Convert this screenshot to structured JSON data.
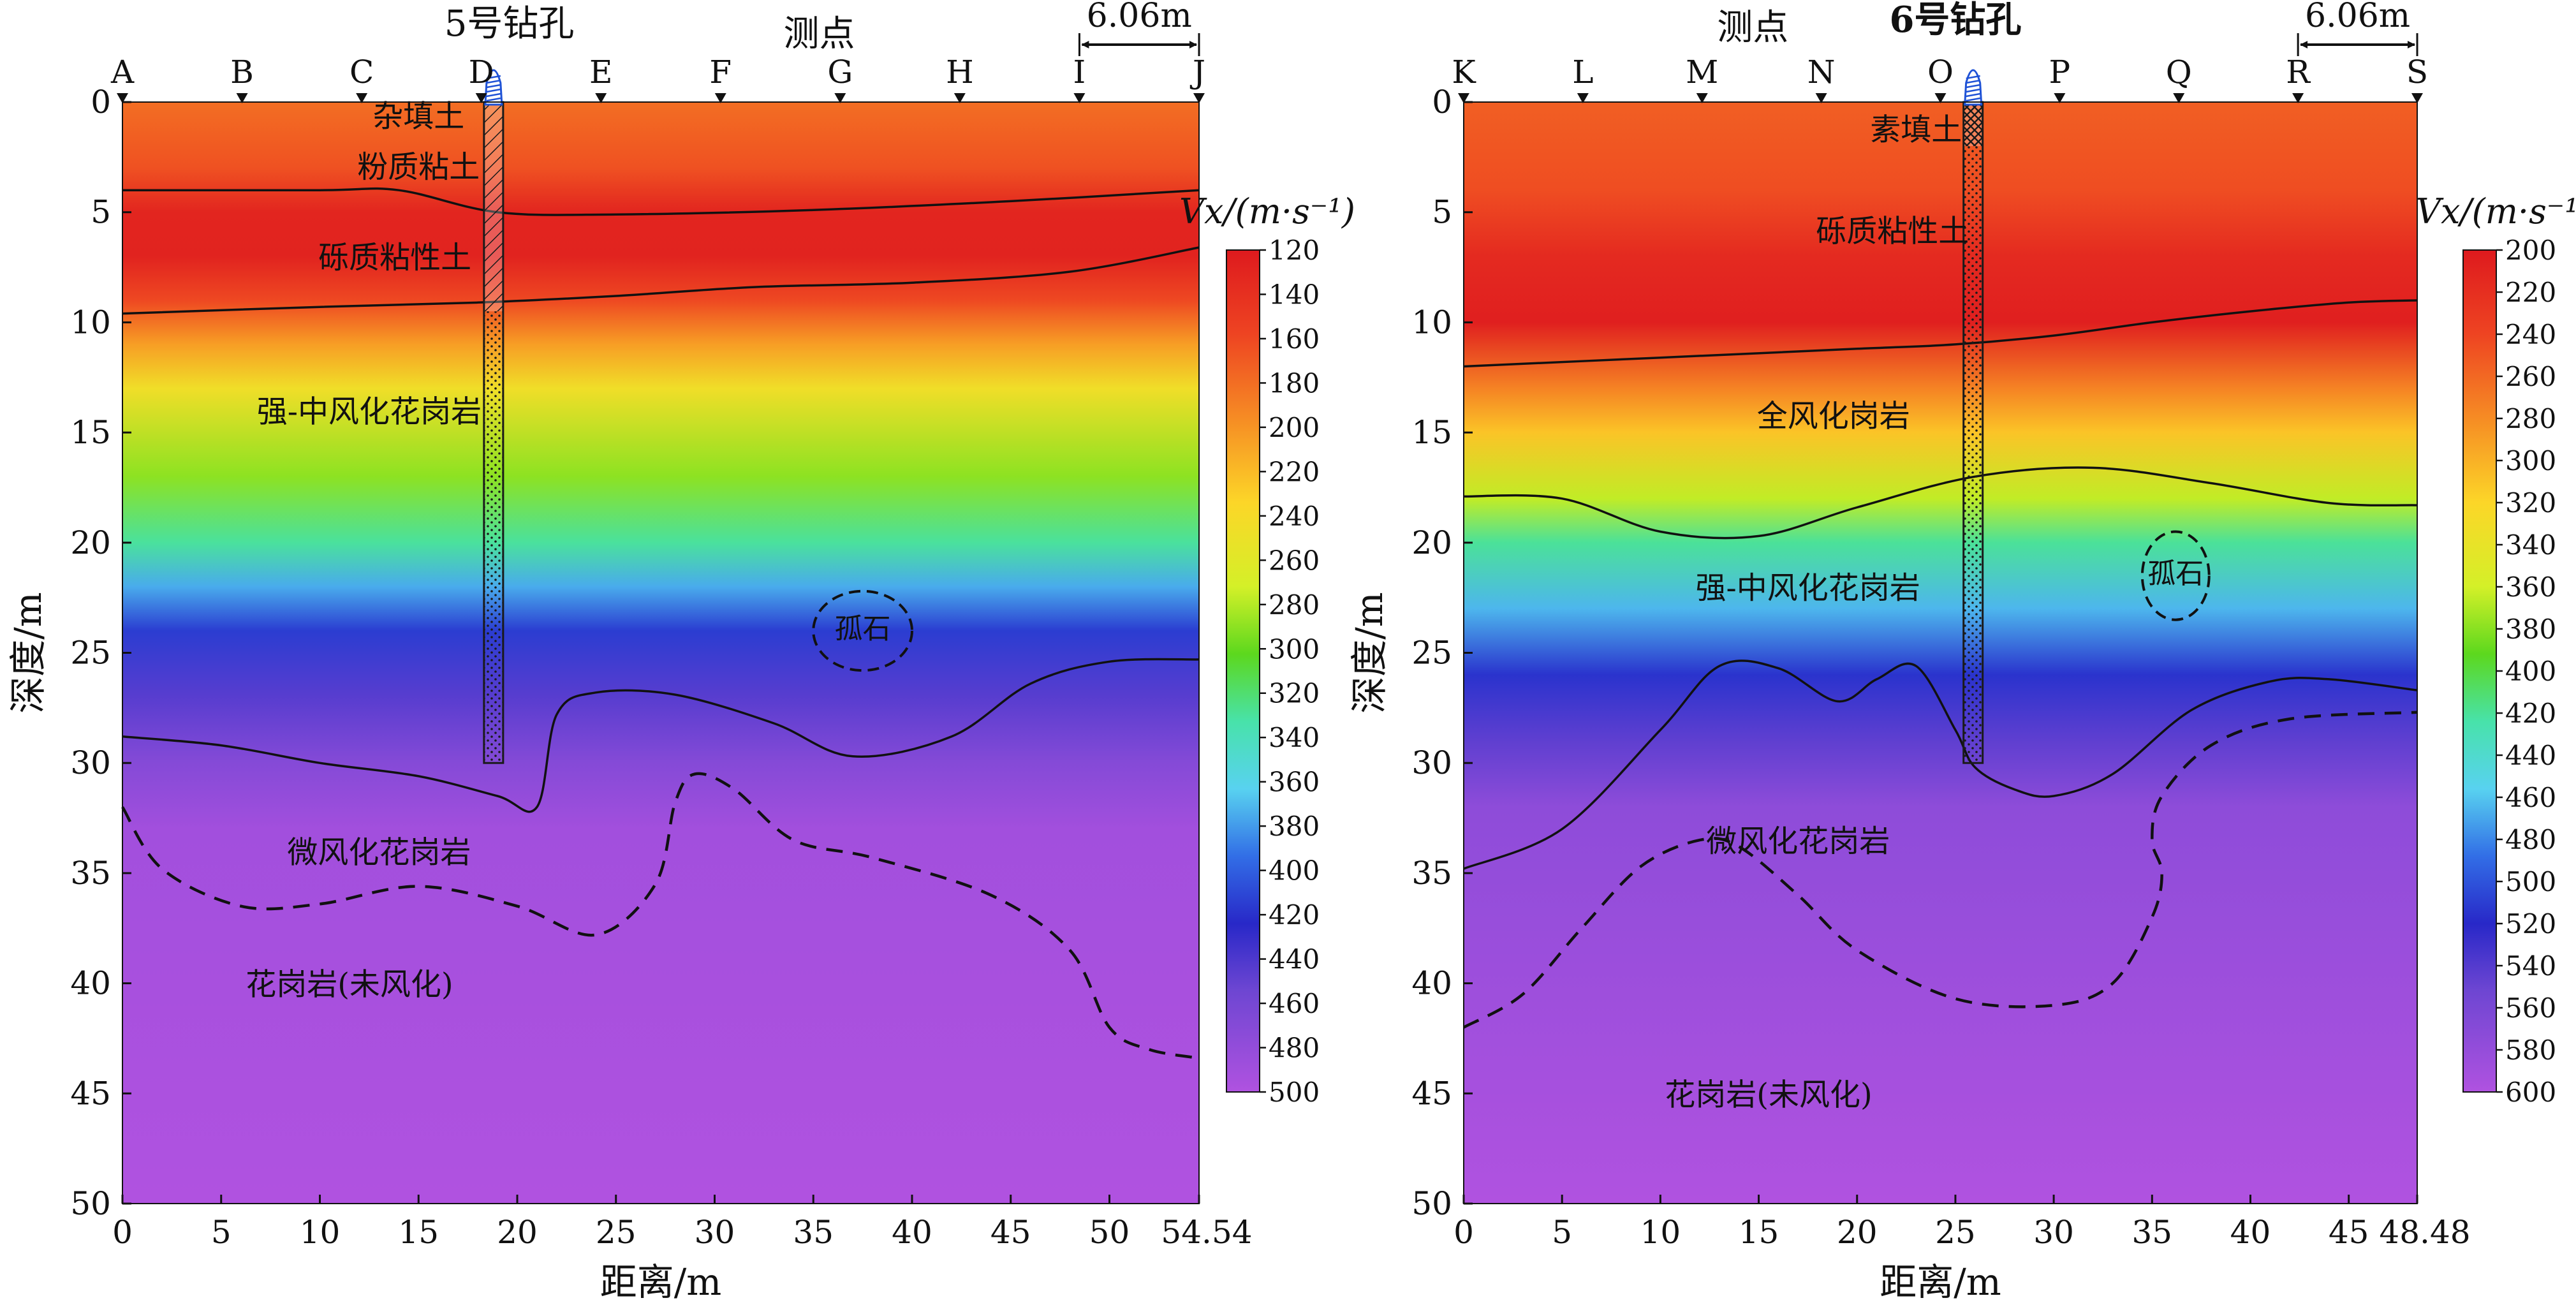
{
  "colors": {
    "fill_material": "#1a1a1a",
    "boundary": "#111111",
    "drill_icon": "#1f52d6"
  },
  "chart_data": [
    {
      "type": "heatmap",
      "id": "left",
      "top_label": "测点",
      "borehole_title": "5号钻孔",
      "spacing_label": "6.06m",
      "xlabel": "距离/m",
      "ylabel": "深度/m",
      "xlim": [
        0,
        54.54
      ],
      "ylim": [
        0,
        50
      ],
      "xticks": [
        0,
        5,
        10,
        15,
        20,
        25,
        30,
        35,
        40,
        45,
        50
      ],
      "xtick_labels": [
        "0",
        "5",
        "10",
        "15",
        "20",
        "25",
        "30",
        "35",
        "40",
        "45",
        "50"
      ],
      "x_end_label": "54.54",
      "yticks": [
        0,
        5,
        10,
        15,
        20,
        25,
        30,
        35,
        40,
        45,
        50
      ],
      "ytick_labels": [
        "0",
        "5",
        "10",
        "15",
        "20",
        "25",
        "30",
        "35",
        "40",
        "45",
        "50"
      ],
      "stations": [
        {
          "name": "A",
          "x": 0
        },
        {
          "name": "B",
          "x": 6.06
        },
        {
          "name": "C",
          "x": 12.12
        },
        {
          "name": "D",
          "x": 18.18
        },
        {
          "name": "E",
          "x": 24.24
        },
        {
          "name": "F",
          "x": 30.3
        },
        {
          "name": "G",
          "x": 36.36
        },
        {
          "name": "H",
          "x": 42.42
        },
        {
          "name": "I",
          "x": 48.48
        },
        {
          "name": "J",
          "x": 54.54
        }
      ],
      "spacing_from": 48.48,
      "spacing_to": 54.54,
      "borehole": {
        "x": 18.8,
        "depth": 30,
        "fill_segments": [
          {
            "from": 0,
            "to": 9.5,
            "pattern": "hatch"
          },
          {
            "from": 9.5,
            "to": 30,
            "pattern": "dots"
          }
        ]
      },
      "colorbar": {
        "title": "Vx/(m·s⁻¹)",
        "vmin": 120,
        "vmax": 500,
        "ticks": [
          "120",
          "140",
          "160",
          "180",
          "200",
          "220",
          "240",
          "260",
          "280",
          "300",
          "320",
          "340",
          "360",
          "380",
          "400",
          "420",
          "440",
          "460",
          "480",
          "500"
        ]
      },
      "velocity_layers": [
        {
          "depth": 0,
          "v": 180
        },
        {
          "depth": 3,
          "v": 165
        },
        {
          "depth": 5,
          "v": 130
        },
        {
          "depth": 7,
          "v": 128
        },
        {
          "depth": 9,
          "v": 160
        },
        {
          "depth": 11,
          "v": 205
        },
        {
          "depth": 13,
          "v": 245
        },
        {
          "depth": 17,
          "v": 290
        },
        {
          "depth": 20,
          "v": 330
        },
        {
          "depth": 22,
          "v": 375
        },
        {
          "depth": 24,
          "v": 415
        },
        {
          "depth": 27,
          "v": 445
        },
        {
          "depth": 30,
          "v": 470
        },
        {
          "depth": 33,
          "v": 490
        },
        {
          "depth": 50,
          "v": 500
        }
      ],
      "boundaries": [
        {
          "style": "solid",
          "x": [
            0,
            10,
            14,
            19,
            25,
            35,
            45,
            54.54
          ],
          "y": [
            4,
            4,
            4,
            5,
            5.1,
            4.9,
            4.5,
            4
          ]
        },
        {
          "style": "solid",
          "x": [
            0,
            10,
            18,
            25,
            32,
            40,
            48,
            54.54
          ],
          "y": [
            9.6,
            9.3,
            9.1,
            8.8,
            8.4,
            8.2,
            7.7,
            6.6
          ]
        },
        {
          "style": "solid",
          "x": [
            0,
            5,
            10,
            15,
            19,
            21,
            22,
            24,
            28,
            33,
            37,
            42,
            46,
            50,
            54.54
          ],
          "y": [
            28.8,
            29.2,
            30,
            30.6,
            31.5,
            32,
            27.8,
            26.8,
            26.9,
            28.2,
            29.7,
            28.8,
            26.4,
            25.4,
            25.3
          ]
        },
        {
          "style": "dashed",
          "x": [
            0,
            2,
            6,
            10,
            15,
            20,
            24,
            27,
            28,
            29,
            31,
            34,
            38,
            44,
            48,
            50,
            52,
            54.54
          ],
          "y": [
            32,
            34.8,
            36.5,
            36.4,
            35.6,
            36.5,
            37.8,
            35.5,
            31.8,
            30.5,
            31.2,
            33.5,
            34.3,
            36,
            38.5,
            42,
            43,
            43.4
          ]
        }
      ],
      "boulder": {
        "label": "孤石",
        "cx": 37.5,
        "cy": 24,
        "rx": 2.5,
        "ry": 1.8
      },
      "annotations": [
        {
          "text": "杂填土",
          "x": 15,
          "y": 0.6
        },
        {
          "text": "粉质粘土",
          "x": 15,
          "y": 2.9
        },
        {
          "text": "砾质粘性土",
          "x": 13.8,
          "y": 7
        },
        {
          "text": "强-中风化花岗岩",
          "x": 12.5,
          "y": 14
        },
        {
          "text": "微风化花岗岩",
          "x": 13,
          "y": 34
        },
        {
          "text": "花岗岩(未风化)",
          "x": 11.5,
          "y": 40
        }
      ]
    },
    {
      "type": "heatmap",
      "id": "right",
      "top_label": "测点",
      "borehole_title": "6号钻孔",
      "spacing_label": "6.06m",
      "xlabel": "距离/m",
      "ylabel": "深度/m",
      "xlim": [
        0,
        48.48
      ],
      "ylim": [
        0,
        50
      ],
      "xticks": [
        0,
        5,
        10,
        15,
        20,
        25,
        30,
        35,
        40,
        45
      ],
      "xtick_labels": [
        "0",
        "5",
        "10",
        "15",
        "20",
        "25",
        "30",
        "35",
        "40",
        "45"
      ],
      "x_end_label": "48.48",
      "yticks": [
        0,
        5,
        10,
        15,
        20,
        25,
        30,
        35,
        40,
        45,
        50
      ],
      "ytick_labels": [
        "0",
        "5",
        "10",
        "15",
        "20",
        "25",
        "30",
        "35",
        "40",
        "45",
        "50"
      ],
      "stations": [
        {
          "name": "K",
          "x": 0
        },
        {
          "name": "L",
          "x": 6.06
        },
        {
          "name": "M",
          "x": 12.12
        },
        {
          "name": "N",
          "x": 18.18
        },
        {
          "name": "O",
          "x": 24.24
        },
        {
          "name": "P",
          "x": 30.3
        },
        {
          "name": "Q",
          "x": 36.36
        },
        {
          "name": "R",
          "x": 42.42
        },
        {
          "name": "S",
          "x": 48.48
        }
      ],
      "spacing_from": 42.42,
      "spacing_to": 48.48,
      "borehole": {
        "x": 25.9,
        "depth": 30,
        "fill_segments": [
          {
            "from": 0,
            "to": 2,
            "pattern": "cross"
          },
          {
            "from": 2,
            "to": 30,
            "pattern": "dots"
          }
        ]
      },
      "colorbar": {
        "title": "Vx/(m·s⁻¹)",
        "vmin": 200,
        "vmax": 600,
        "ticks": [
          "200",
          "220",
          "240",
          "260",
          "280",
          "300",
          "320",
          "340",
          "360",
          "380",
          "400",
          "420",
          "440",
          "460",
          "480",
          "500",
          "520",
          "540",
          "560",
          "580",
          "600"
        ]
      },
      "velocity_layers": [
        {
          "depth": 0,
          "v": 255
        },
        {
          "depth": 4,
          "v": 245
        },
        {
          "depth": 7,
          "v": 215
        },
        {
          "depth": 10,
          "v": 205
        },
        {
          "depth": 13,
          "v": 275
        },
        {
          "depth": 15,
          "v": 310
        },
        {
          "depth": 18,
          "v": 365
        },
        {
          "depth": 20,
          "v": 420
        },
        {
          "depth": 23,
          "v": 465
        },
        {
          "depth": 26,
          "v": 515
        },
        {
          "depth": 29,
          "v": 545
        },
        {
          "depth": 32,
          "v": 575
        },
        {
          "depth": 50,
          "v": 600
        }
      ],
      "boundaries": [
        {
          "style": "solid",
          "x": [
            0,
            10,
            20,
            25,
            30,
            35,
            40,
            45,
            48.48
          ],
          "y": [
            12,
            11.6,
            11.2,
            11,
            10.6,
            10,
            9.5,
            9.1,
            9
          ]
        },
        {
          "style": "solid",
          "x": [
            0,
            5,
            10,
            15,
            20,
            26,
            32,
            38,
            44,
            48.48
          ],
          "y": [
            17.9,
            18,
            19.5,
            19.7,
            18.4,
            17,
            16.6,
            17.3,
            18.2,
            18.3
          ]
        },
        {
          "style": "solid",
          "x": [
            0,
            5,
            10,
            13,
            16,
            19,
            21,
            23,
            25,
            26,
            28,
            30,
            33,
            37,
            41,
            44,
            48.48
          ],
          "y": [
            34.8,
            33,
            28.5,
            25.6,
            25.7,
            27.2,
            26.2,
            25.6,
            28.5,
            30.2,
            31.2,
            31.5,
            30.5,
            27.6,
            26.3,
            26.2,
            26.7
          ]
        },
        {
          "style": "dashed",
          "x": [
            0,
            3,
            6,
            9,
            12,
            14,
            17,
            20,
            25,
            30,
            33,
            35,
            35.5,
            35,
            35.5,
            38,
            42,
            48.48
          ],
          "y": [
            42,
            40.5,
            37.5,
            34.7,
            33.5,
            33.8,
            36,
            38.5,
            40.7,
            41,
            40,
            37,
            35,
            33.5,
            31.5,
            29.2,
            28,
            27.7
          ]
        }
      ],
      "boulder": {
        "label": "孤石",
        "cx": 36.2,
        "cy": 21.5,
        "rx": 1.7,
        "ry": 2
      },
      "annotations": [
        {
          "text": "素填土",
          "x": 23,
          "y": 1.2
        },
        {
          "text": "砾质粘性土",
          "x": 21.8,
          "y": 5.8
        },
        {
          "text": "全风化岗岩",
          "x": 18.8,
          "y": 14.2
        },
        {
          "text": "强-中风化花岗岩",
          "x": 17.5,
          "y": 22
        },
        {
          "text": "微风化花岗岩",
          "x": 17,
          "y": 33.5
        },
        {
          "text": "花岗岩(未风化)",
          "x": 15.5,
          "y": 45
        }
      ]
    }
  ]
}
